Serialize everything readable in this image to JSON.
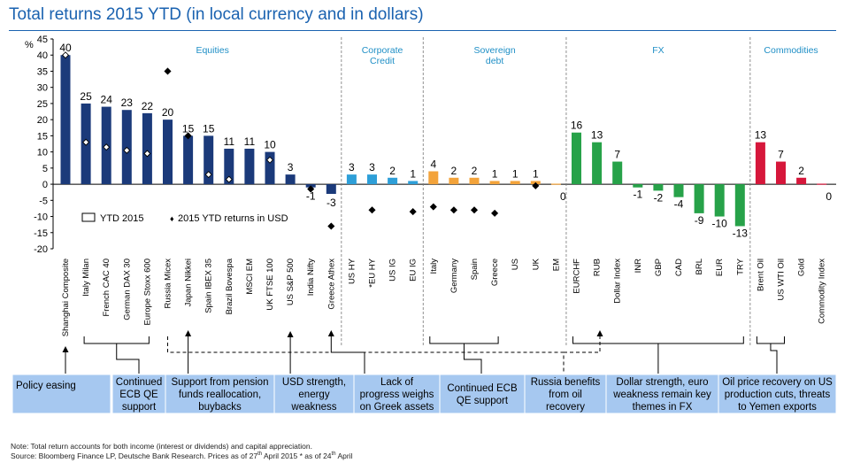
{
  "title": "Total returns 2015 YTD (in local currency and in dollars)",
  "colors": {
    "title": "#1a62b0",
    "group_label": "#1f8fc6",
    "Equities": "#1b3a7a",
    "Corporate Credit": "#2e9fd8",
    "Sovereign debt": "#f3a33a",
    "FX": "#27a249",
    "Commodities": "#d6173b",
    "annotation_box": "#a6c8f0"
  },
  "chart_data": {
    "type": "bar",
    "title": "Total returns 2015 YTD (in local currency and in dollars)",
    "ylabel": "%",
    "ylim": [
      -20,
      45
    ],
    "yticks": [
      45,
      40,
      35,
      30,
      25,
      20,
      15,
      10,
      5,
      0,
      -5,
      -10,
      -15,
      -20
    ],
    "legend": {
      "bar_label": "YTD 2015",
      "marker_label": "2015 YTD returns in USD",
      "marker_symbol": "♦"
    },
    "groups": [
      {
        "name": "Equities",
        "categories": [
          "Shanghai Composite",
          "Italy Milan",
          "French CAC 40",
          "German DAX 30",
          "Europe Stoxx 600",
          "Russia Micex",
          "Japan Nikkei",
          "Spain IBEX 35",
          "Brazil Bovespa",
          "MSCI EM",
          "UK FTSE 100",
          "US S&P 500",
          "India Nifty",
          "Greece Athex"
        ],
        "values": [
          40,
          25,
          24,
          23,
          22,
          20,
          15,
          15,
          11,
          11,
          10,
          3,
          -1,
          -3
        ],
        "usd_values": [
          40,
          13,
          11.5,
          10.5,
          9.5,
          35,
          15,
          3,
          1.5,
          null,
          7.5,
          null,
          -1.5,
          -13
        ]
      },
      {
        "name": "Corporate Credit",
        "categories": [
          "US HY",
          "*EU HY",
          "US IG",
          "EU IG"
        ],
        "values": [
          3,
          3,
          2,
          1
        ],
        "usd_values": [
          null,
          -8,
          null,
          -8.5
        ]
      },
      {
        "name": "Sovereign debt",
        "categories": [
          "Italy",
          "Germany",
          "Spain",
          "Greece",
          "US",
          "UK",
          "EM"
        ],
        "values": [
          4,
          2,
          2,
          1,
          1,
          1,
          0
        ],
        "usd_values": [
          -7,
          -8,
          -8,
          -9,
          null,
          -0.5,
          null
        ]
      },
      {
        "name": "FX",
        "categories": [
          "EURCHF",
          "RUB",
          "Dollar Index",
          "INR",
          "GBP",
          "CAD",
          "BRL",
          "EUR",
          "TRY"
        ],
        "values": [
          16,
          13,
          7,
          -1,
          -2,
          -4,
          -9,
          -10,
          -13
        ],
        "usd_values": [
          null,
          null,
          null,
          null,
          null,
          null,
          null,
          null,
          null
        ]
      },
      {
        "name": "Commodities",
        "categories": [
          "Brent Oil",
          "US WTI Oil",
          "Gold",
          "Commodity Index"
        ],
        "values": [
          13,
          7,
          2,
          0
        ],
        "usd_values": [
          null,
          null,
          null,
          null
        ]
      }
    ]
  },
  "group_labels": {
    "Equities": "Equities",
    "Corporate Credit": [
      "Corporate",
      "Credit"
    ],
    "Sovereign debt": [
      "Sovereign",
      "debt"
    ],
    "FX": "FX",
    "Commodities": "Commodities"
  },
  "annotations": [
    {
      "text": [
        "Policy easing"
      ]
    },
    {
      "text": [
        "Continued",
        "ECB QE",
        "support"
      ]
    },
    {
      "text": [
        "Support from pension",
        "funds reallocation,",
        "buybacks"
      ]
    },
    {
      "text": [
        "USD strength,",
        "energy",
        "weakness"
      ]
    },
    {
      "text": [
        "Lack of",
        "progress weighs",
        "on Greek assets"
      ]
    },
    {
      "text": [
        "Continued ECB",
        "QE support"
      ]
    },
    {
      "text": [
        "Russia benefits",
        "from oil",
        "recovery"
      ]
    },
    {
      "text": [
        "Dollar strength, euro",
        "weakness remain key",
        "themes in FX"
      ]
    },
    {
      "text": [
        "Oil price recovery on US",
        "production cuts, threats",
        "to Yemen exports"
      ]
    }
  ],
  "footnotes": {
    "note": "Note: Total return accounts for both income (interest or dividends) and capital appreciation.",
    "source_prefix": "Source: Bloomberg Finance LP, Deutsche Bank Research. Prices as of  27",
    "sup1": "th",
    "source_mid": " April 2015  * as of 24",
    "sup2": "th",
    "source_suffix": " April"
  }
}
